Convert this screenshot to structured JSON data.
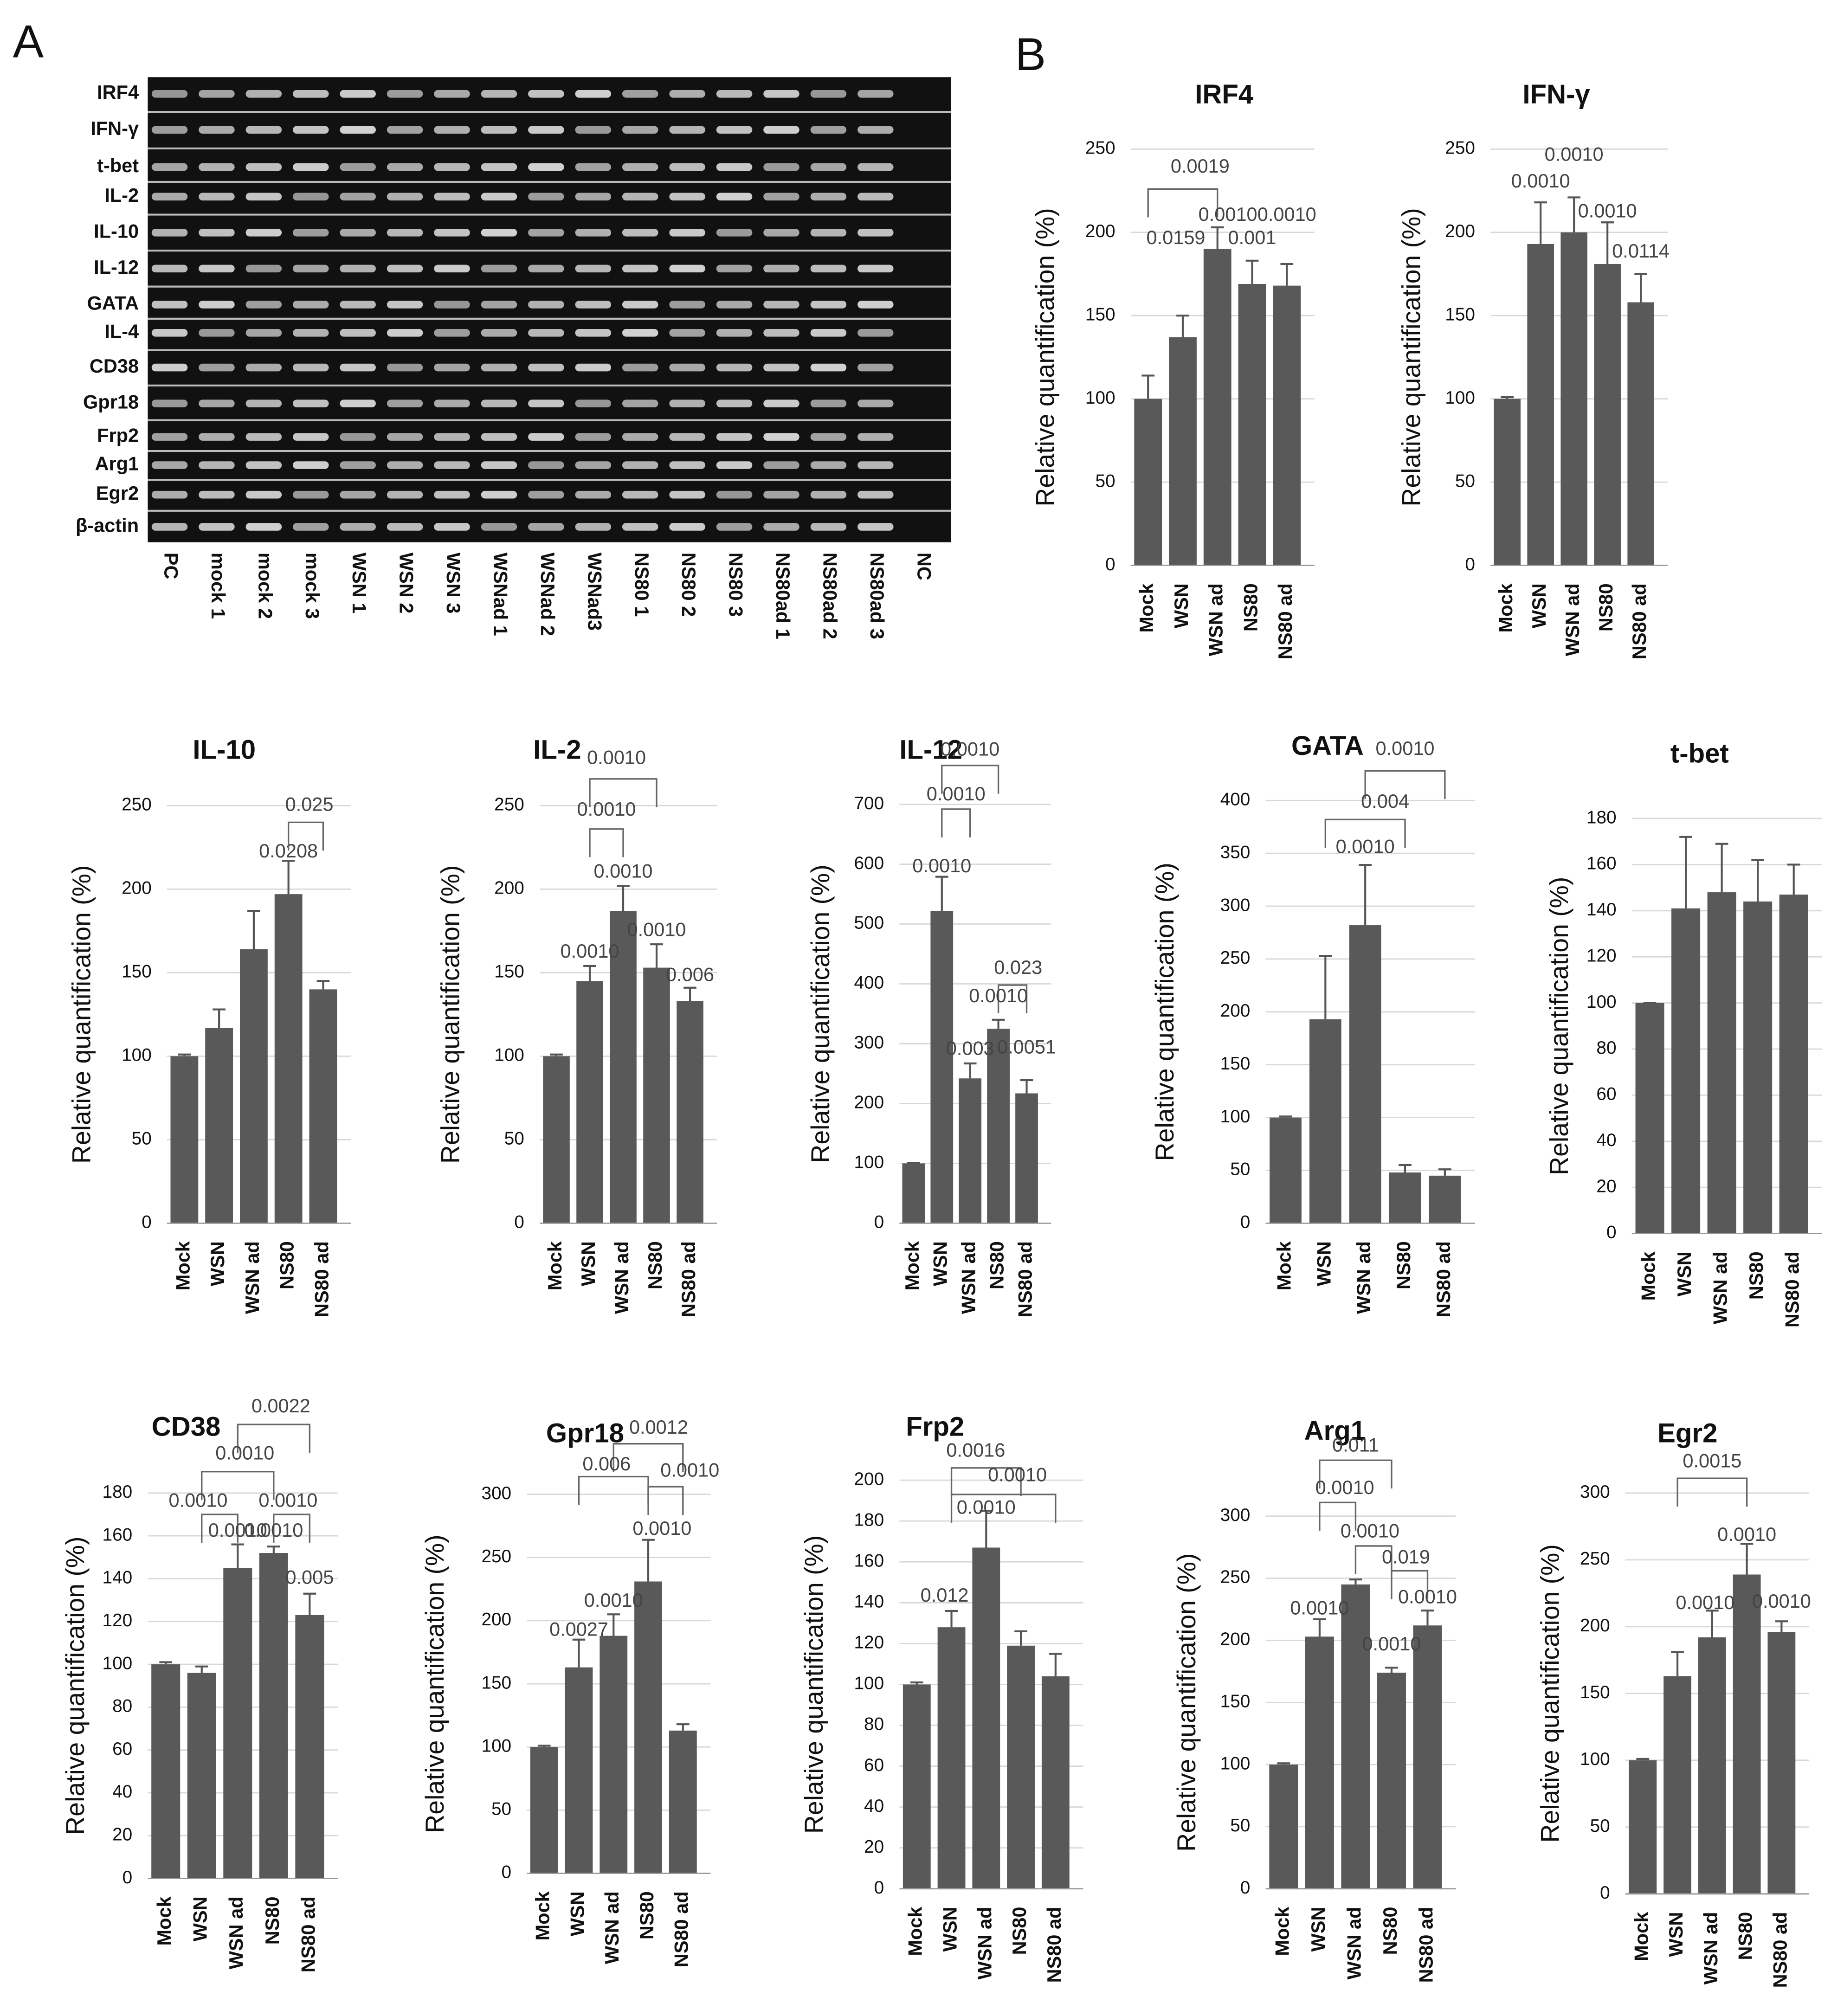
{
  "panel_labels": [
    "A",
    "B"
  ],
  "gel": {
    "rows": [
      "IRF4",
      "IFN-γ",
      "t-bet",
      "IL-2",
      "IL-10",
      "IL-12",
      "GATA",
      "IL-4",
      "CD38",
      "Gpr18",
      "Frp2",
      "Arg1",
      "Egr2",
      "β-actin"
    ],
    "lanes": [
      "PC",
      "mock 1",
      "mock 2",
      "mock 3",
      "WSN 1",
      "WSN 2",
      "WSN 3",
      "WSNad 1",
      "WSNad 2",
      "WSNad3",
      "NS80 1",
      "NS80 2",
      "NS80 3",
      "NS80ad 1",
      "NS80ad 2",
      "NS80ad 3",
      "NC"
    ]
  },
  "chart_data": [
    {
      "type": "bar",
      "title": "IRF4",
      "ylabel": "Relative quantification (%)",
      "categories": [
        "Mock",
        "WSN",
        "WSN ad",
        "NS80",
        "NS80 ad"
      ],
      "values": [
        100,
        137,
        190,
        169,
        168
      ],
      "errors": [
        14,
        13,
        13,
        14,
        13
      ],
      "color": "#595959",
      "ylim": [
        0,
        250
      ],
      "yticks": [
        0,
        50,
        100,
        150,
        200,
        250
      ],
      "grid": true,
      "annotations": [
        "0.0019",
        "0.0159",
        "0.0010",
        "0.001",
        "0.0010"
      ]
    },
    {
      "type": "bar",
      "title": "IFN-γ",
      "ylabel": "Relative quantification (%)",
      "categories": [
        "Mock",
        "WSN",
        "WSN ad",
        "NS80",
        "NS80 ad"
      ],
      "values": [
        100,
        193,
        200,
        181,
        158
      ],
      "errors": [
        1,
        25,
        21,
        25,
        17
      ],
      "color": "#595959",
      "ylim": [
        0,
        250
      ],
      "yticks": [
        0,
        50,
        100,
        150,
        200,
        250
      ],
      "grid": true,
      "annotations": [
        "0.0010",
        "0.0010",
        "0.0010",
        "0.0114"
      ]
    },
    {
      "type": "bar",
      "title": "IL-10",
      "ylabel": "Relative quantification (%)",
      "categories": [
        "Mock",
        "WSN",
        "WSN ad",
        "NS80",
        "NS80 ad"
      ],
      "values": [
        100,
        117,
        164,
        197,
        140
      ],
      "errors": [
        1,
        11,
        23,
        20,
        5
      ],
      "color": "#595959",
      "ylim": [
        0,
        250
      ],
      "yticks": [
        0,
        50,
        100,
        150,
        200,
        250
      ],
      "grid": true,
      "annotations": [
        "0.0208",
        "0.025"
      ]
    },
    {
      "type": "bar",
      "title": "IL-2",
      "ylabel": "Relative quantification (%)",
      "categories": [
        "Mock",
        "WSN",
        "WSN ad",
        "NS80",
        "NS80 ad"
      ],
      "values": [
        100,
        145,
        187,
        153,
        133
      ],
      "errors": [
        1,
        9,
        15,
        14,
        8
      ],
      "color": "#595959",
      "ylim": [
        0,
        250
      ],
      "yticks": [
        0,
        50,
        100,
        150,
        200,
        250
      ],
      "grid": true,
      "annotations": [
        "0.0010",
        "0.0010",
        "0.0010",
        "0.0010",
        "0.0010",
        "0.006"
      ]
    },
    {
      "type": "bar",
      "title": "IL-12",
      "ylabel": "Relative quantification (%)",
      "categories": [
        "Mock",
        "WSN",
        "WSN ad",
        "NS80",
        "NS80 ad"
      ],
      "values": [
        100,
        522,
        242,
        325,
        217
      ],
      "errors": [
        1,
        57,
        25,
        15,
        22
      ],
      "color": "#595959",
      "ylim": [
        0,
        700
      ],
      "yticks": [
        0,
        100,
        200,
        300,
        400,
        500,
        600,
        700
      ],
      "grid": true,
      "annotations": [
        "0.0010",
        "0.0010",
        "0.0010",
        "0.023",
        "0.003",
        "0.0010",
        "0.0051"
      ]
    },
    {
      "type": "bar",
      "title": "GATA",
      "ylabel": "Relative quantification (%)",
      "categories": [
        "Mock",
        "WSN",
        "WSN ad",
        "NS80",
        "NS80 ad"
      ],
      "values": [
        100,
        193,
        282,
        48,
        45
      ],
      "errors": [
        1,
        60,
        57,
        7,
        6
      ],
      "color": "#595959",
      "ylim": [
        0,
        400
      ],
      "yticks": [
        0,
        50,
        100,
        150,
        200,
        250,
        300,
        350,
        400
      ],
      "grid": true,
      "annotations": [
        "0.0010",
        "0.004",
        "0.0010"
      ]
    },
    {
      "type": "bar",
      "title": "t-bet",
      "ylabel": "Relative quantification (%)",
      "categories": [
        "Mock",
        "WSN",
        "WSN ad",
        "NS80",
        "NS80 ad"
      ],
      "values": [
        100,
        141,
        148,
        144,
        147
      ],
      "errors": [
        0,
        31,
        21,
        18,
        13
      ],
      "color": "#595959",
      "ylim": [
        0,
        180
      ],
      "yticks": [
        0,
        20,
        40,
        60,
        80,
        100,
        120,
        140,
        160,
        180
      ],
      "grid": true,
      "annotations": []
    },
    {
      "type": "bar",
      "title": "CD38",
      "ylabel": "Relative quantification (%)",
      "categories": [
        "Mock",
        "WSN",
        "WSN ad",
        "NS80",
        "NS80 ad"
      ],
      "values": [
        100,
        96,
        145,
        152,
        123
      ],
      "errors": [
        1,
        3,
        11,
        3,
        10
      ],
      "color": "#595959",
      "ylim": [
        0,
        180
      ],
      "yticks": [
        0,
        20,
        40,
        60,
        80,
        100,
        120,
        140,
        160,
        180
      ],
      "grid": true,
      "annotations": [
        "0.0022",
        "0.0010",
        "0.0010",
        "0.0010",
        "0.0010",
        "0.0010",
        "0.005"
      ]
    },
    {
      "type": "bar",
      "title": "Gpr18",
      "ylabel": "Relative quantification (%)",
      "categories": [
        "Mock",
        "WSN",
        "WSN ad",
        "NS80",
        "NS80 ad"
      ],
      "values": [
        100,
        163,
        188,
        231,
        113
      ],
      "errors": [
        1,
        22,
        17,
        33,
        5
      ],
      "color": "#595959",
      "ylim": [
        0,
        300
      ],
      "yticks": [
        0,
        50,
        100,
        150,
        200,
        250,
        300
      ],
      "grid": true,
      "annotations": [
        "0.0012",
        "0.006",
        "0.0010",
        "0.0010",
        "0.0010",
        "0.0027"
      ]
    },
    {
      "type": "bar",
      "title": "Frp2",
      "ylabel": "Relative quantification (%)",
      "categories": [
        "Mock",
        "WSN",
        "WSN ad",
        "NS80",
        "NS80 ad"
      ],
      "values": [
        100,
        128,
        167,
        119,
        104
      ],
      "errors": [
        1,
        8,
        18,
        7,
        11
      ],
      "color": "#595959",
      "ylim": [
        0,
        200
      ],
      "yticks": [
        0,
        20,
        40,
        60,
        80,
        100,
        120,
        140,
        160,
        180,
        200
      ],
      "grid": true,
      "annotations": [
        "0.0016",
        "0.0010",
        "0.0010",
        "0.012"
      ]
    },
    {
      "type": "bar",
      "title": "Arg1",
      "ylabel": "Relative quantification (%)",
      "categories": [
        "Mock",
        "WSN",
        "WSN ad",
        "NS80",
        "NS80 ad"
      ],
      "values": [
        100,
        203,
        245,
        174,
        212
      ],
      "errors": [
        1,
        14,
        4,
        4,
        12
      ],
      "color": "#595959",
      "ylim": [
        0,
        300
      ],
      "yticks": [
        0,
        50,
        100,
        150,
        200,
        250,
        300
      ],
      "grid": true,
      "annotations": [
        "0.011",
        "0.0010",
        "0.0010",
        "0.019",
        "0.0010",
        "0.0010",
        "0.0010"
      ]
    },
    {
      "type": "bar",
      "title": "Egr2",
      "ylabel": "Relative quantification (%)",
      "categories": [
        "Mock",
        "WSN",
        "WSN ad",
        "NS80",
        "NS80 ad"
      ],
      "values": [
        100,
        163,
        192,
        239,
        196
      ],
      "errors": [
        1,
        18,
        20,
        23,
        8
      ],
      "color": "#595959",
      "ylim": [
        0,
        300
      ],
      "yticks": [
        0,
        50,
        100,
        150,
        200,
        250,
        300
      ],
      "grid": true,
      "annotations": [
        "0.0015",
        "0.0010",
        "0.0010",
        "0.0010"
      ]
    }
  ]
}
